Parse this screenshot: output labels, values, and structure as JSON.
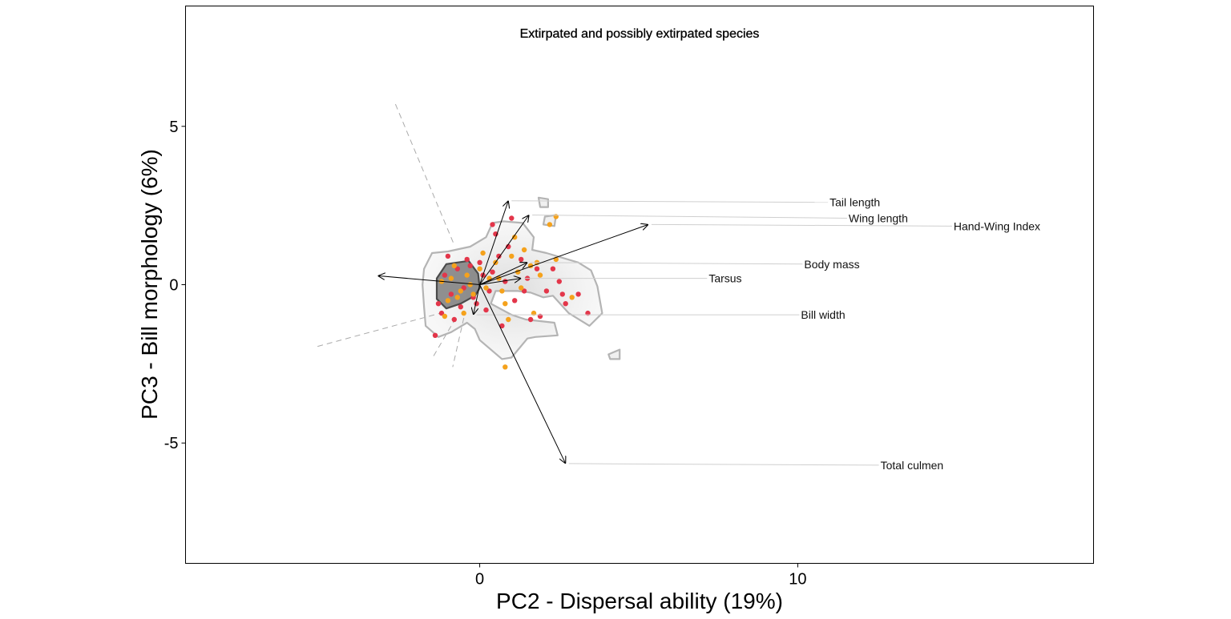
{
  "chart_data": {
    "type": "scatter",
    "title": "Extirpated and possibly extirpated species",
    "xlabel": "PC2 - Dispersal ability (19%)",
    "ylabel": "PC3 - Bill morphology (6%)",
    "xlim": [
      -9.25,
      19.3
    ],
    "ylim": [
      -8.8,
      8.8
    ],
    "xticks": [
      0,
      10
    ],
    "xtick_labels": [
      "0",
      "10"
    ],
    "yticks": [
      -5,
      0,
      5
    ],
    "ytick_labels": [
      "-5",
      "0",
      "5"
    ],
    "grid": false,
    "legend": "none",
    "colors": {
      "point_red": "#e3364a",
      "point_orange": "#f5a21c",
      "contour_outer": "#b4b4b4",
      "contour_inner": "#4a4a4a",
      "density_fill": "#6e6e6e",
      "arrow": "#000000",
      "leader_line": "#cfcfcf",
      "dashed_line": "#aaaaaa"
    },
    "vectors": [
      {
        "label": "Tail length",
        "x": 0.9,
        "y": 2.65,
        "label_x": 11.0,
        "label_y": 2.6
      },
      {
        "label": "Wing length",
        "x": 1.55,
        "y": 2.2,
        "label_x": 11.6,
        "label_y": 2.1
      },
      {
        "label": "Hand-Wing Index",
        "x": 5.3,
        "y": 1.9,
        "label_x": 14.9,
        "label_y": 1.85
      },
      {
        "label": "Body mass",
        "x": 1.5,
        "y": 0.7,
        "label_x": 10.2,
        "label_y": 0.65
      },
      {
        "label": "Tarsus",
        "x": 1.3,
        "y": 0.2,
        "label_x": 7.2,
        "label_y": 0.2
      },
      {
        "label": "Bill width",
        "x": -0.2,
        "y": -0.95,
        "label_x": 10.1,
        "label_y": -0.95
      },
      {
        "label": "Total culmen",
        "x": 2.7,
        "y": -5.65,
        "label_x": 12.6,
        "label_y": -5.7
      },
      {
        "label": "",
        "x": -3.2,
        "y": 0.28
      }
    ],
    "dashed_lines": [
      [
        [
          -2.65,
          5.7
        ],
        [
          -0.8,
          1.25
        ]
      ],
      [
        [
          -5.1,
          -1.95
        ],
        [
          -1.05,
          -0.85
        ]
      ],
      [
        [
          -0.75,
          -1.05
        ],
        [
          -1.45,
          -2.25
        ]
      ],
      [
        [
          -0.5,
          -1.05
        ],
        [
          -0.85,
          -2.6
        ]
      ]
    ],
    "series": [
      {
        "color": "#e3364a",
        "points": [
          [
            -1.3,
            -0.6
          ],
          [
            -1.1,
            0.3
          ],
          [
            -0.9,
            -0.3
          ],
          [
            -0.7,
            0.5
          ],
          [
            -0.5,
            -0.1
          ],
          [
            -0.3,
            0.6
          ],
          [
            -0.2,
            -0.4
          ],
          [
            0.1,
            0.3
          ],
          [
            0.3,
            -0.2
          ],
          [
            0.6,
            0.9
          ],
          [
            0.9,
            1.2
          ],
          [
            1.1,
            -0.5
          ],
          [
            1.5,
            0.2
          ],
          [
            1.8,
            0.5
          ],
          [
            2.1,
            -0.2
          ],
          [
            2.5,
            0.1
          ],
          [
            2.7,
            -0.6
          ],
          [
            3.1,
            -0.3
          ],
          [
            3.4,
            -0.9
          ],
          [
            0.5,
            1.6
          ],
          [
            0.8,
            0.1
          ],
          [
            1.3,
            0.8
          ],
          [
            -1.4,
            -1.6
          ],
          [
            -0.8,
            -1.1
          ],
          [
            0.2,
            -0.8
          ],
          [
            1.6,
            -1.1
          ],
          [
            0.4,
            1.9
          ],
          [
            1.0,
            2.1
          ],
          [
            -0.4,
            0.8
          ],
          [
            -0.6,
            -0.7
          ],
          [
            0.0,
            0.7
          ],
          [
            2.3,
            0.5
          ],
          [
            1.4,
            -0.2
          ],
          [
            -1.0,
            0.9
          ],
          [
            0.7,
            -1.3
          ],
          [
            1.9,
            -1.0
          ],
          [
            -1.2,
            -0.9
          ],
          [
            0.4,
            0.4
          ],
          [
            -0.1,
            -0.6
          ],
          [
            2.6,
            -0.3
          ]
        ]
      },
      {
        "color": "#f5a21c",
        "points": [
          [
            -1.2,
            0.1
          ],
          [
            -1.0,
            -0.5
          ],
          [
            -0.8,
            0.6
          ],
          [
            -0.6,
            -0.2
          ],
          [
            -0.4,
            0.3
          ],
          [
            -0.2,
            -0.3
          ],
          [
            0.0,
            0.5
          ],
          [
            0.2,
            -0.1
          ],
          [
            0.5,
            0.7
          ],
          [
            0.7,
            -0.2
          ],
          [
            1.0,
            0.9
          ],
          [
            1.2,
            0.4
          ],
          [
            1.6,
            0.6
          ],
          [
            1.9,
            0.3
          ],
          [
            2.4,
            0.8
          ],
          [
            2.9,
            -0.4
          ],
          [
            0.8,
            -0.6
          ],
          [
            1.1,
            1.5
          ],
          [
            1.4,
            1.1
          ],
          [
            -1.1,
            -1.0
          ],
          [
            -0.5,
            -0.9
          ],
          [
            0.3,
            0.2
          ],
          [
            0.9,
            -1.1
          ],
          [
            1.7,
            -0.9
          ],
          [
            0.8,
            -2.6
          ],
          [
            2.4,
            2.15
          ],
          [
            2.2,
            1.9
          ],
          [
            -0.9,
            0.2
          ],
          [
            -0.7,
            -0.4
          ],
          [
            0.6,
            0.2
          ],
          [
            1.3,
            -0.1
          ],
          [
            -0.3,
            0.0
          ],
          [
            0.1,
            1.0
          ],
          [
            1.8,
            0.7
          ]
        ]
      }
    ],
    "contours": {
      "outer": [
        [
          [
            -1.5,
            1.0
          ],
          [
            -1.0,
            1.05
          ],
          [
            -0.3,
            1.2
          ],
          [
            0.2,
            1.5
          ],
          [
            0.4,
            1.95
          ],
          [
            0.75,
            2.0
          ],
          [
            1.35,
            1.95
          ],
          [
            1.7,
            1.5
          ],
          [
            1.65,
            1.1
          ],
          [
            2.1,
            1.0
          ],
          [
            3.1,
            0.7
          ],
          [
            3.5,
            0.45
          ],
          [
            3.7,
            -0.05
          ],
          [
            3.85,
            -0.9
          ],
          [
            3.45,
            -1.3
          ],
          [
            2.8,
            -0.9
          ],
          [
            2.3,
            -0.35
          ],
          [
            2.0,
            -0.4
          ],
          [
            1.6,
            -0.25
          ],
          [
            1.2,
            -0.2
          ],
          [
            0.5,
            -0.2
          ],
          [
            0.35,
            -0.6
          ],
          [
            1.0,
            -0.95
          ],
          [
            1.45,
            -1.1
          ],
          [
            2.35,
            -1.2
          ],
          [
            2.45,
            -1.6
          ],
          [
            1.75,
            -1.65
          ],
          [
            1.5,
            -1.7
          ],
          [
            1.0,
            -2.3
          ],
          [
            0.7,
            -2.35
          ],
          [
            0.0,
            -1.75
          ],
          [
            -0.15,
            -1.4
          ],
          [
            -0.4,
            -1.2
          ],
          [
            -0.9,
            -1.5
          ],
          [
            -1.3,
            -1.65
          ],
          [
            -1.7,
            -1.3
          ],
          [
            -1.75,
            -0.7
          ],
          [
            -1.8,
            0.0
          ],
          [
            -1.75,
            0.5
          ]
        ],
        [
          [
            1.85,
            2.75
          ],
          [
            2.15,
            2.7
          ],
          [
            2.15,
            2.45
          ],
          [
            1.9,
            2.45
          ]
        ],
        [
          [
            4.05,
            -2.2
          ],
          [
            4.4,
            -2.05
          ],
          [
            4.4,
            -2.35
          ],
          [
            4.1,
            -2.35
          ]
        ],
        [
          [
            2.05,
            2.15
          ],
          [
            2.4,
            2.2
          ],
          [
            2.35,
            1.85
          ],
          [
            2.0,
            1.9
          ]
        ]
      ],
      "inner": [
        [
          [
            -1.05,
            0.65
          ],
          [
            -0.35,
            0.75
          ],
          [
            -0.05,
            0.35
          ],
          [
            0.0,
            -0.1
          ],
          [
            -0.15,
            -0.35
          ],
          [
            -0.6,
            -0.6
          ],
          [
            -1.05,
            -0.75
          ],
          [
            -1.35,
            -0.45
          ],
          [
            -1.35,
            0.2
          ]
        ]
      ]
    }
  }
}
